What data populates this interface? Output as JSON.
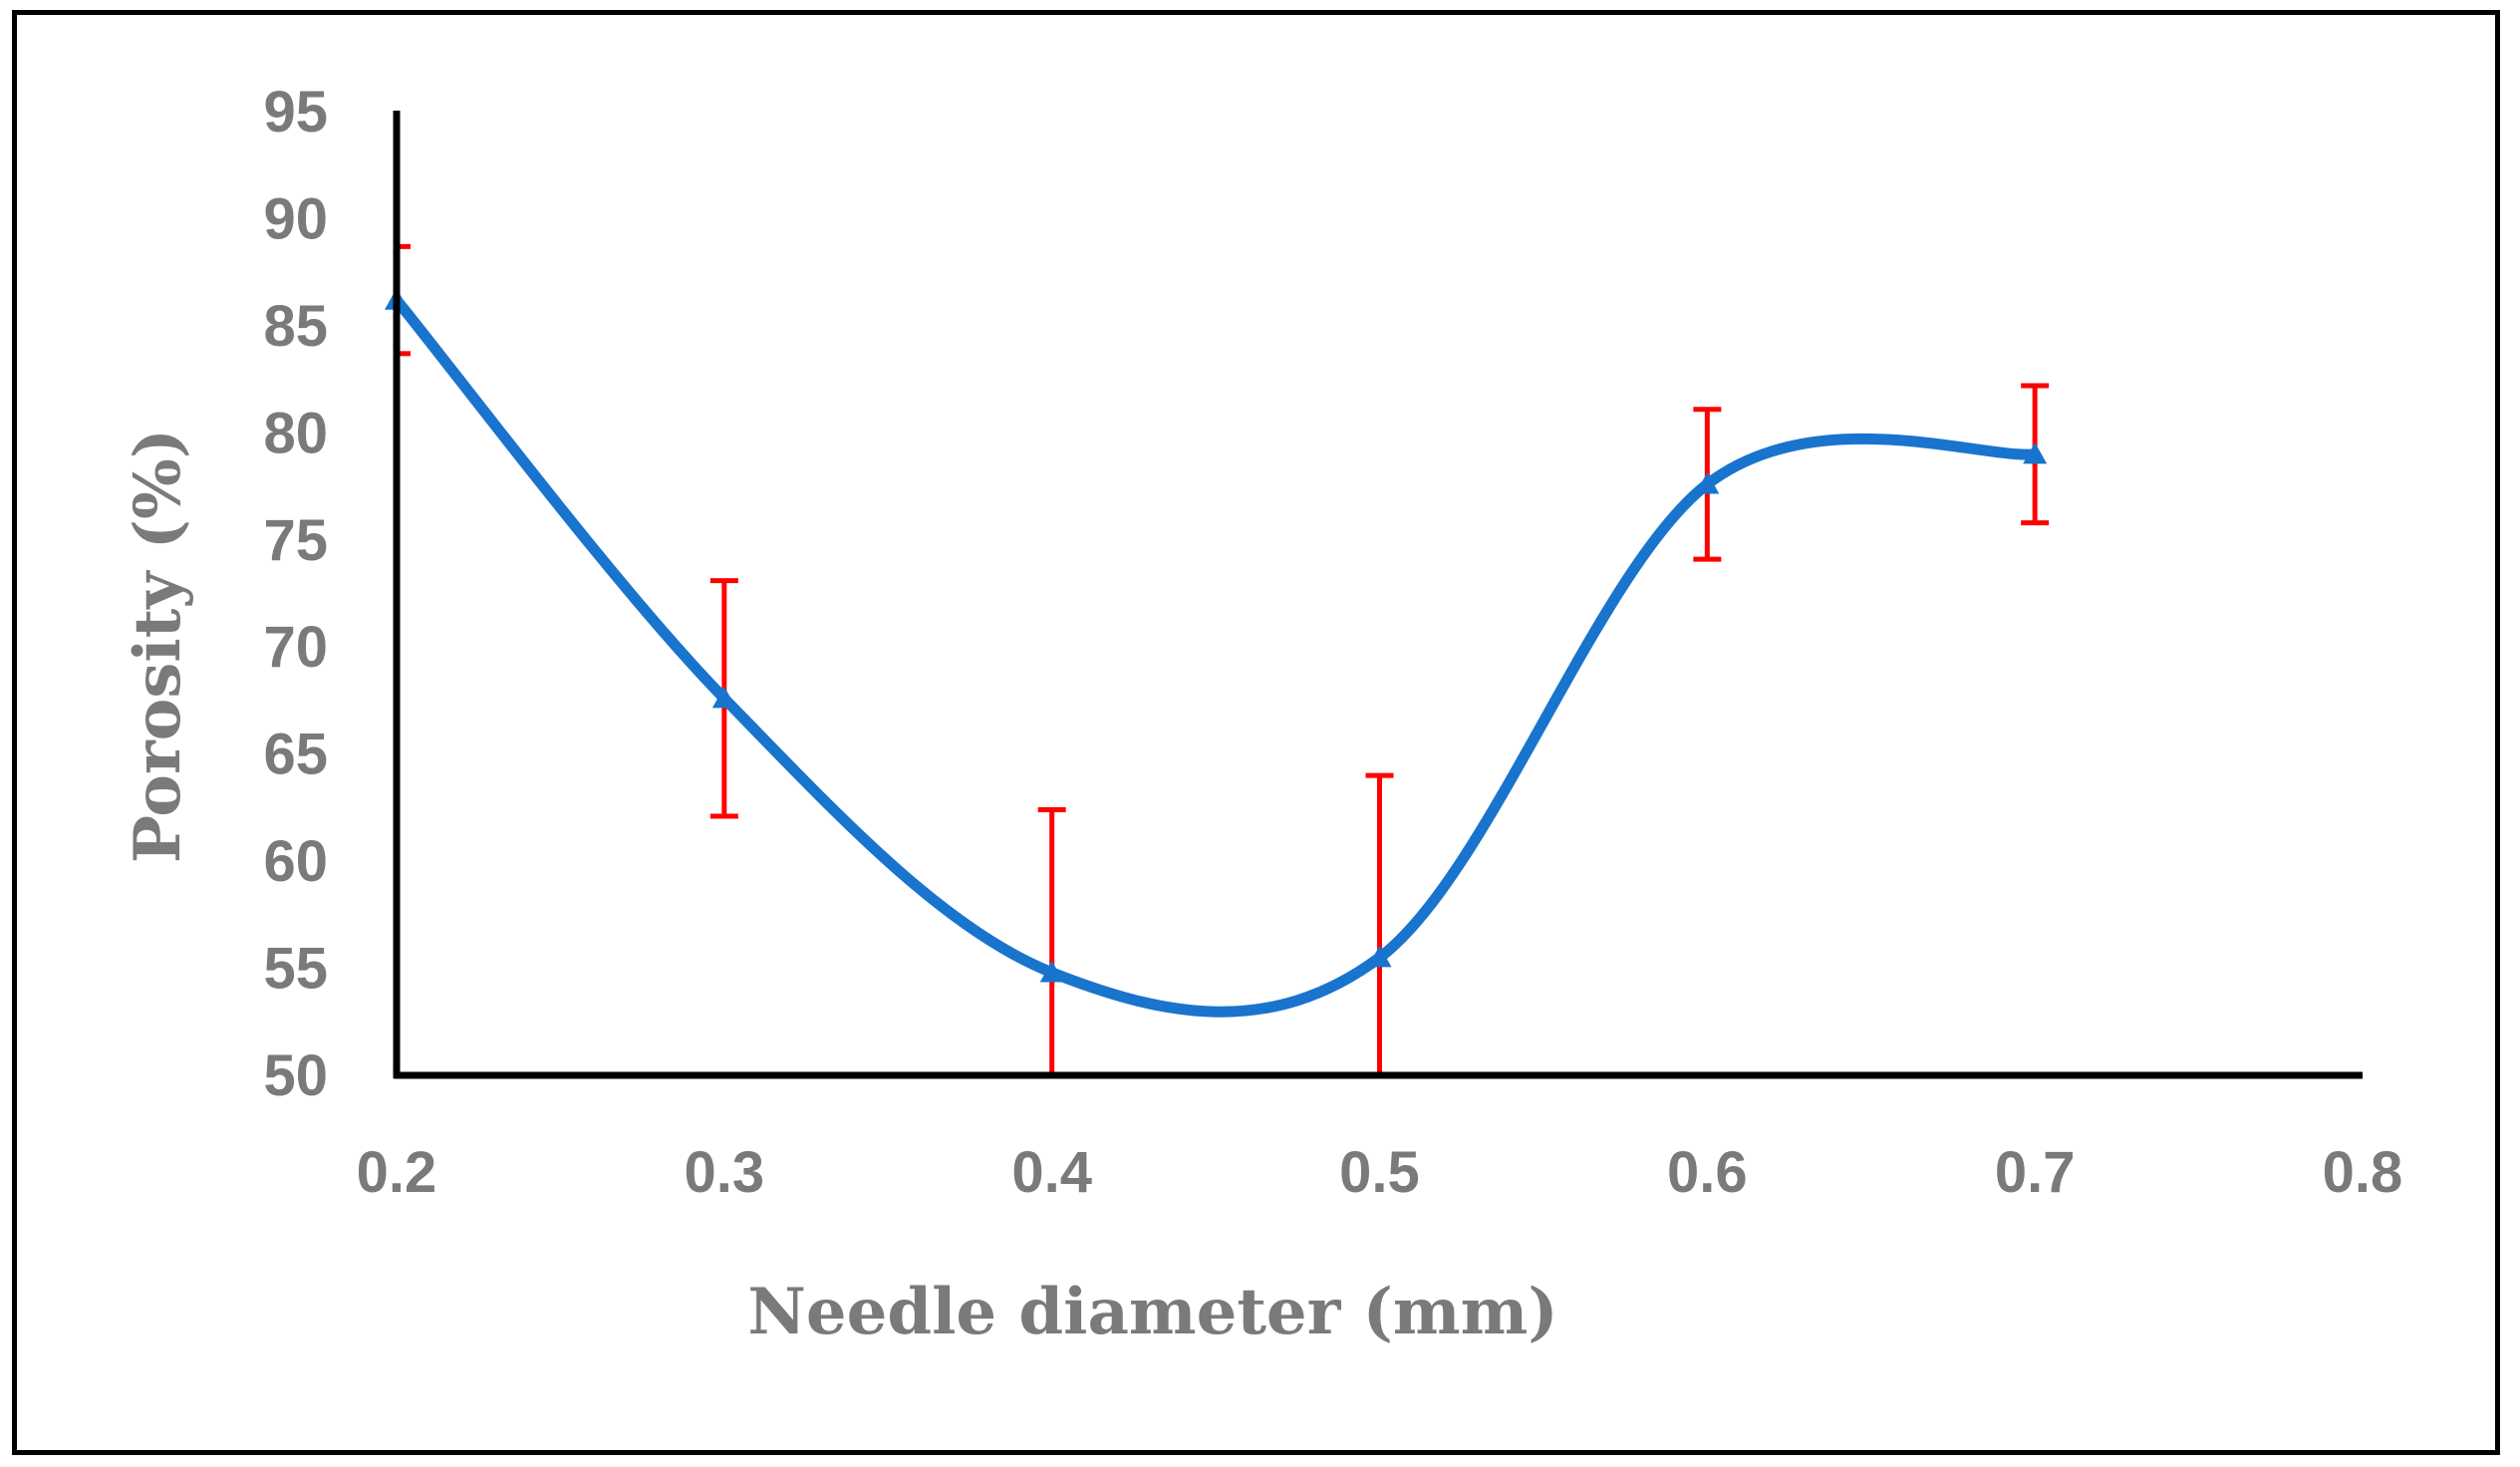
{
  "chart_data": {
    "type": "line",
    "title": "",
    "xlabel": "Needle diameter (mm)",
    "ylabel": "Porosity (%)",
    "xlim": [
      0.2,
      0.8
    ],
    "ylim": [
      50,
      95
    ],
    "x_ticks": [
      "0.2",
      "0.3",
      "0.4",
      "0.5",
      "0.6",
      "0.7",
      "0.8"
    ],
    "y_ticks": [
      "95",
      "90",
      "85",
      "80",
      "75",
      "70",
      "65",
      "60",
      "55",
      "50"
    ],
    "grid": false,
    "smooth": true,
    "series": [
      {
        "name": "Porosity",
        "color": "#1874cd",
        "x": [
          0.2,
          0.3,
          0.4,
          0.5,
          0.6,
          0.7
        ],
        "y": [
          86.2,
          67.6,
          54.8,
          55.5,
          77.6,
          79.0
        ],
        "error": [
          2.5,
          5.5,
          7.6,
          8.5,
          3.5,
          3.2
        ],
        "error_color": "#ff0000",
        "marker": "triangle"
      }
    ]
  }
}
